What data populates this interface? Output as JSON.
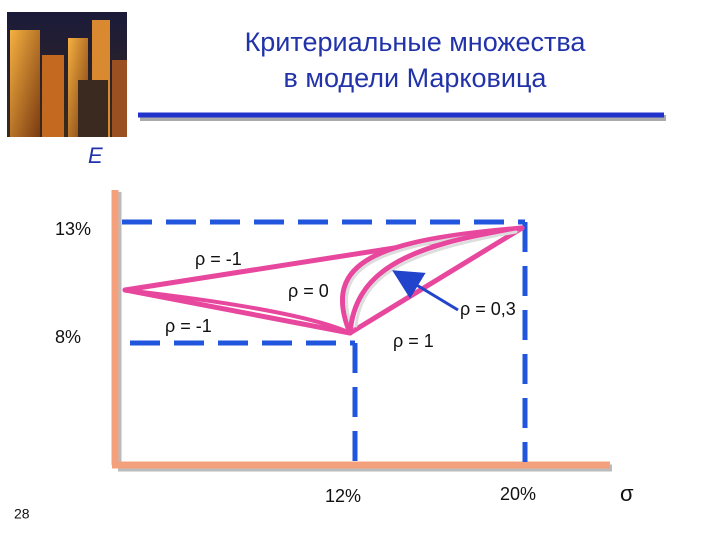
{
  "header": {
    "title_line1": "Критериальные множества",
    "title_line2": "в модели Марковица"
  },
  "axes": {
    "y_label": "E",
    "x_label": "σ",
    "y_tick_high": "13%",
    "y_tick_low": "8%",
    "x_tick_low": "12%",
    "x_tick_high": "20%"
  },
  "curves": {
    "rho_minus1_upper": "ρ = -1",
    "rho_minus1_lower": "ρ = -1",
    "rho_zero": "ρ = 0",
    "rho_03": "ρ = 0,3",
    "rho_one": "ρ = 1"
  },
  "footer": {
    "page": "28"
  }
}
